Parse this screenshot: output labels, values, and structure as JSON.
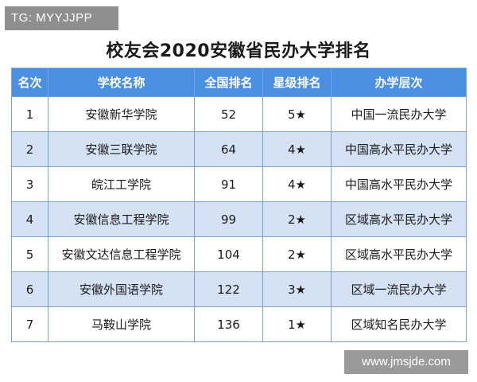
{
  "watermark_top": "TG: MYYJJPP",
  "title": "校友会2020安徽省民办大学排名",
  "headers": [
    "名次",
    "学校名称",
    "全国排名",
    "星级排名",
    "办学层次"
  ],
  "rows": [
    [
      "1",
      "安徽新华学院",
      "52",
      "5★",
      "中国一流民办大学"
    ],
    [
      "2",
      "安徽三联学院",
      "64",
      "4★",
      "中国高水平民办大学"
    ],
    [
      "3",
      "皖江工学院",
      "91",
      "4★",
      "中国高水平民办大学"
    ],
    [
      "4",
      "安徽信息工程学院",
      "99",
      "2★",
      "区域高水平民办大学"
    ],
    [
      "5",
      "安徽文达信息工程学院",
      "104",
      "2★",
      "区域高水平民办大学"
    ],
    [
      "6",
      "安徽外国语学院",
      "122",
      "3★",
      "区域一流民办大学"
    ],
    [
      "7",
      "马鞍山学院",
      "136",
      "1★",
      "区域知名民办大学"
    ]
  ],
  "watermark_bottom": "www.jmsjde.com",
  "colors": {
    "header_bg": "#4a8fe0",
    "stripe_bg": "#d5e2f5",
    "watermark_bg": "#8f8f8f"
  }
}
